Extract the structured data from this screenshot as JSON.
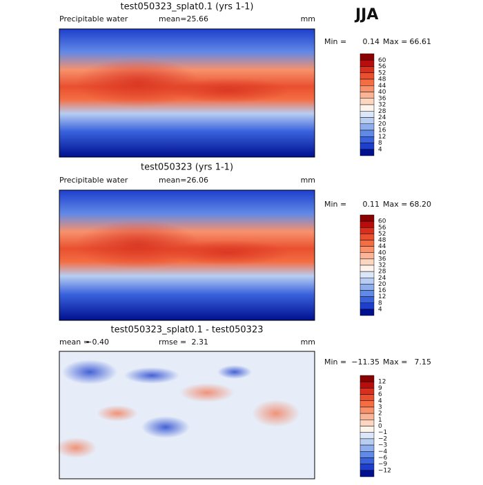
{
  "header": {
    "season": "JJA"
  },
  "colorbar_colors": [
    "#8b0000",
    "#b80d0d",
    "#d7301f",
    "#e9502f",
    "#f46d43",
    "#f8916c",
    "#fbb496",
    "#fdd6c2",
    "#fff4ec",
    "#dbe7f8",
    "#b7cdf2",
    "#8eaeed",
    "#6189e6",
    "#3a62dd",
    "#1d3fcc",
    "#00108f"
  ],
  "panels": [
    {
      "title": "test050323_splat0.1 (yrs 1-1)",
      "variable": "Precipitable water",
      "stats": [
        {
          "label": "mean=",
          "value": "25.66"
        }
      ],
      "units": "mm",
      "min_label": "Min =",
      "min": "0.14",
      "max_label": "Max =",
      "max": "66.61",
      "levels": [
        "60",
        "56",
        "52",
        "48",
        "44",
        "40",
        "36",
        "32",
        "28",
        "24",
        "20",
        "16",
        "12",
        "8",
        "4"
      ]
    },
    {
      "title": "test050323 (yrs 1-1)",
      "variable": "Precipitable water",
      "stats": [
        {
          "label": "mean=",
          "value": "26.06"
        }
      ],
      "units": "mm",
      "min_label": "Min =",
      "min": "0.11",
      "max_label": "Max =",
      "max": "68.20",
      "levels": [
        "60",
        "56",
        "52",
        "48",
        "44",
        "40",
        "36",
        "32",
        "28",
        "24",
        "20",
        "16",
        "12",
        "8",
        "4"
      ]
    },
    {
      "title": "test050323_splat0.1 - test050323",
      "stats": [
        {
          "label": "mean =",
          "value": "−0.40"
        },
        {
          "label": "rmse =",
          "value": "2.31"
        }
      ],
      "units": "mm",
      "min_label": "Min =",
      "min": "−11.35",
      "max_label": "Max =",
      "max": "7.15",
      "levels": [
        "12",
        "9",
        "6",
        "4",
        "3",
        "2",
        "1",
        "0",
        "−1",
        "−2",
        "−3",
        "−4",
        "−6",
        "−9",
        "−12"
      ]
    }
  ]
}
